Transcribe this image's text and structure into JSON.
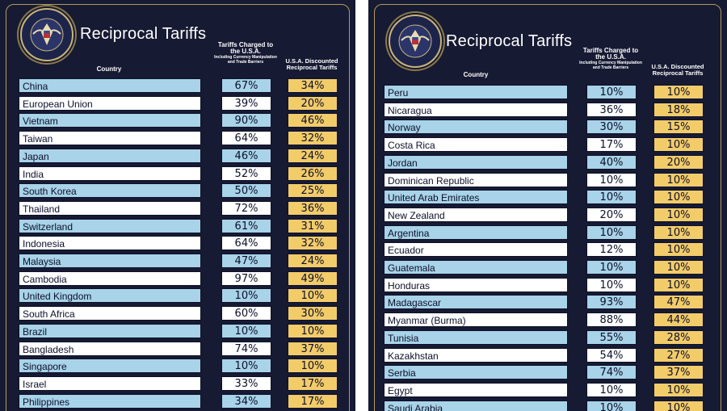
{
  "left_panel": {
    "title": "Reciprocal Tariffs",
    "seal_text": "SEAL OF THE PRESIDENT OF THE UNITED STATES",
    "headers": {
      "country": "Country",
      "charged_main": "Tariffs Charged to the U.S.A.",
      "charged_sub": "Including Currency Manipulation and Trade Barriers",
      "discounted": "U.S.A. Discounted Reciprocal Tariffs"
    },
    "rows": [
      {
        "country": "China",
        "charged": "67%",
        "discounted": "34%"
      },
      {
        "country": "European Union",
        "charged": "39%",
        "discounted": "20%"
      },
      {
        "country": "Vietnam",
        "charged": "90%",
        "discounted": "46%"
      },
      {
        "country": "Taiwan",
        "charged": "64%",
        "discounted": "32%"
      },
      {
        "country": "Japan",
        "charged": "46%",
        "discounted": "24%"
      },
      {
        "country": "India",
        "charged": "52%",
        "discounted": "26%"
      },
      {
        "country": "South Korea",
        "charged": "50%",
        "discounted": "25%"
      },
      {
        "country": "Thailand",
        "charged": "72%",
        "discounted": "36%"
      },
      {
        "country": "Switzerland",
        "charged": "61%",
        "discounted": "31%"
      },
      {
        "country": "Indonesia",
        "charged": "64%",
        "discounted": "32%"
      },
      {
        "country": "Malaysia",
        "charged": "47%",
        "discounted": "24%"
      },
      {
        "country": "Cambodia",
        "charged": "97%",
        "discounted": "49%"
      },
      {
        "country": "United Kingdom",
        "charged": "10%",
        "discounted": "10%"
      },
      {
        "country": "South Africa",
        "charged": "60%",
        "discounted": "30%"
      },
      {
        "country": "Brazil",
        "charged": "10%",
        "discounted": "10%"
      },
      {
        "country": "Bangladesh",
        "charged": "74%",
        "discounted": "37%"
      },
      {
        "country": "Singapore",
        "charged": "10%",
        "discounted": "10%"
      },
      {
        "country": "Israel",
        "charged": "33%",
        "discounted": "17%"
      },
      {
        "country": "Philippines",
        "charged": "34%",
        "discounted": "17%"
      }
    ]
  },
  "right_panel": {
    "title": "Reciprocal Tariffs",
    "seal_text": "SEAL OF THE PRESIDENT OF THE UNITED STATES",
    "headers": {
      "country": "Country",
      "charged_main": "Tariffs Charged to the U.S.A.",
      "charged_sub": "Including Currency Manipulation and Trade Barriers",
      "discounted": "U.S.A. Discounted Reciprocal Tariffs"
    },
    "rows": [
      {
        "country": "Peru",
        "charged": "10%",
        "discounted": "10%"
      },
      {
        "country": "Nicaragua",
        "charged": "36%",
        "discounted": "18%"
      },
      {
        "country": "Norway",
        "charged": "30%",
        "discounted": "15%"
      },
      {
        "country": "Costa Rica",
        "charged": "17%",
        "discounted": "10%"
      },
      {
        "country": "Jordan",
        "charged": "40%",
        "discounted": "20%"
      },
      {
        "country": "Dominican Republic",
        "charged": "10%",
        "discounted": "10%"
      },
      {
        "country": "United Arab Emirates",
        "charged": "10%",
        "discounted": "10%"
      },
      {
        "country": "New Zealand",
        "charged": "20%",
        "discounted": "10%"
      },
      {
        "country": "Argentina",
        "charged": "10%",
        "discounted": "10%"
      },
      {
        "country": "Ecuador",
        "charged": "12%",
        "discounted": "10%"
      },
      {
        "country": "Guatemala",
        "charged": "10%",
        "discounted": "10%"
      },
      {
        "country": "Honduras",
        "charged": "10%",
        "discounted": "10%"
      },
      {
        "country": "Madagascar",
        "charged": "93%",
        "discounted": "47%"
      },
      {
        "country": "Myanmar (Burma)",
        "charged": "88%",
        "discounted": "44%"
      },
      {
        "country": "Tunisia",
        "charged": "55%",
        "discounted": "28%"
      },
      {
        "country": "Kazakhstan",
        "charged": "54%",
        "discounted": "27%"
      },
      {
        "country": "Serbia",
        "charged": "74%",
        "discounted": "37%"
      },
      {
        "country": "Egypt",
        "charged": "10%",
        "discounted": "10%"
      },
      {
        "country": "Saudi Arabia",
        "charged": "10%",
        "discounted": "10%"
      }
    ]
  },
  "colors": {
    "background": "#161a33",
    "row_blue": "#a8d3e8",
    "row_white": "#ffffff",
    "gold": "#f3cc6a",
    "frame": "#b49a5b"
  }
}
